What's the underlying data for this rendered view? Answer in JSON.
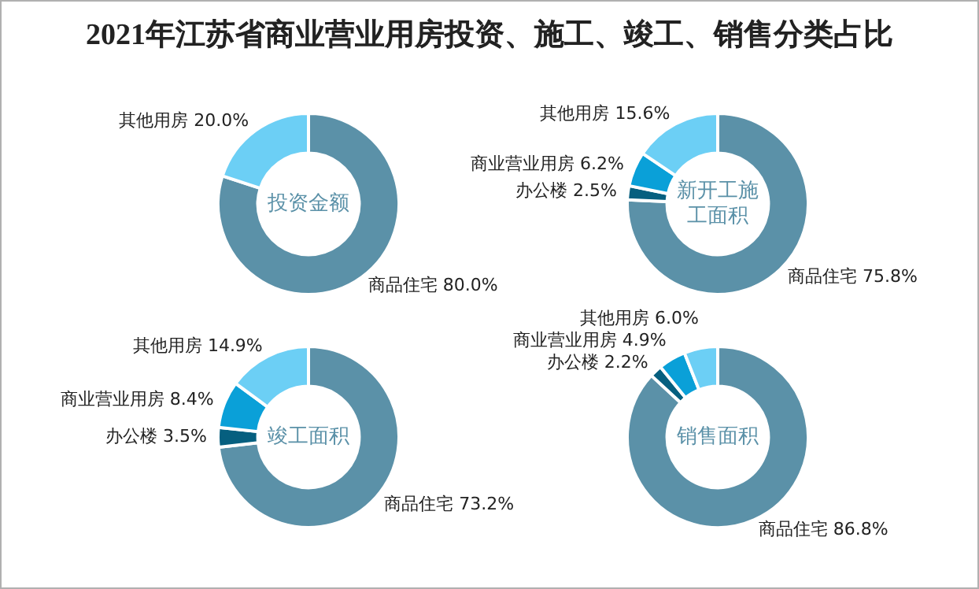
{
  "chart_data": [
    {
      "type": "other",
      "title": "2021年江苏省商业营业用房投资、施工、竣工、销售分类占比"
    },
    {
      "type": "donut",
      "title": "投资金额",
      "categories": [
        "商品住宅",
        "其他用房"
      ],
      "values": [
        80.0,
        20.0
      ],
      "colors": [
        "#5b91a8",
        "#6ccff5"
      ],
      "value_labels": [
        "80.0%",
        "20.0%"
      ]
    },
    {
      "type": "donut",
      "title": "新开工施工面积",
      "categories": [
        "商品住宅",
        "办公楼",
        "商业营业用房",
        "其他用房"
      ],
      "values": [
        75.8,
        2.5,
        6.2,
        15.6
      ],
      "colors": [
        "#5b91a8",
        "#065f7f",
        "#0aa0d8",
        "#6ccff5"
      ],
      "value_labels": [
        "75.8%",
        "2.5%",
        "6.2%",
        "15.6%"
      ]
    },
    {
      "type": "donut",
      "title": "竣工面积",
      "categories": [
        "商品住宅",
        "办公楼",
        "商业营业用房",
        "其他用房"
      ],
      "values": [
        73.2,
        3.5,
        8.4,
        14.9
      ],
      "colors": [
        "#5b91a8",
        "#065f7f",
        "#0aa0d8",
        "#6ccff5"
      ],
      "value_labels": [
        "73.2%",
        "3.5%",
        "8.4%",
        "14.9%"
      ]
    },
    {
      "type": "donut",
      "title": "销售面积",
      "categories": [
        "商品住宅",
        "办公楼",
        "商业营业用房",
        "其他用房"
      ],
      "values": [
        86.8,
        2.2,
        4.9,
        6.0
      ],
      "colors": [
        "#5b91a8",
        "#065f7f",
        "#0aa0d8",
        "#6ccff5"
      ],
      "value_labels": [
        "86.8%",
        "2.2%",
        "4.9%",
        "6.0%"
      ]
    }
  ]
}
